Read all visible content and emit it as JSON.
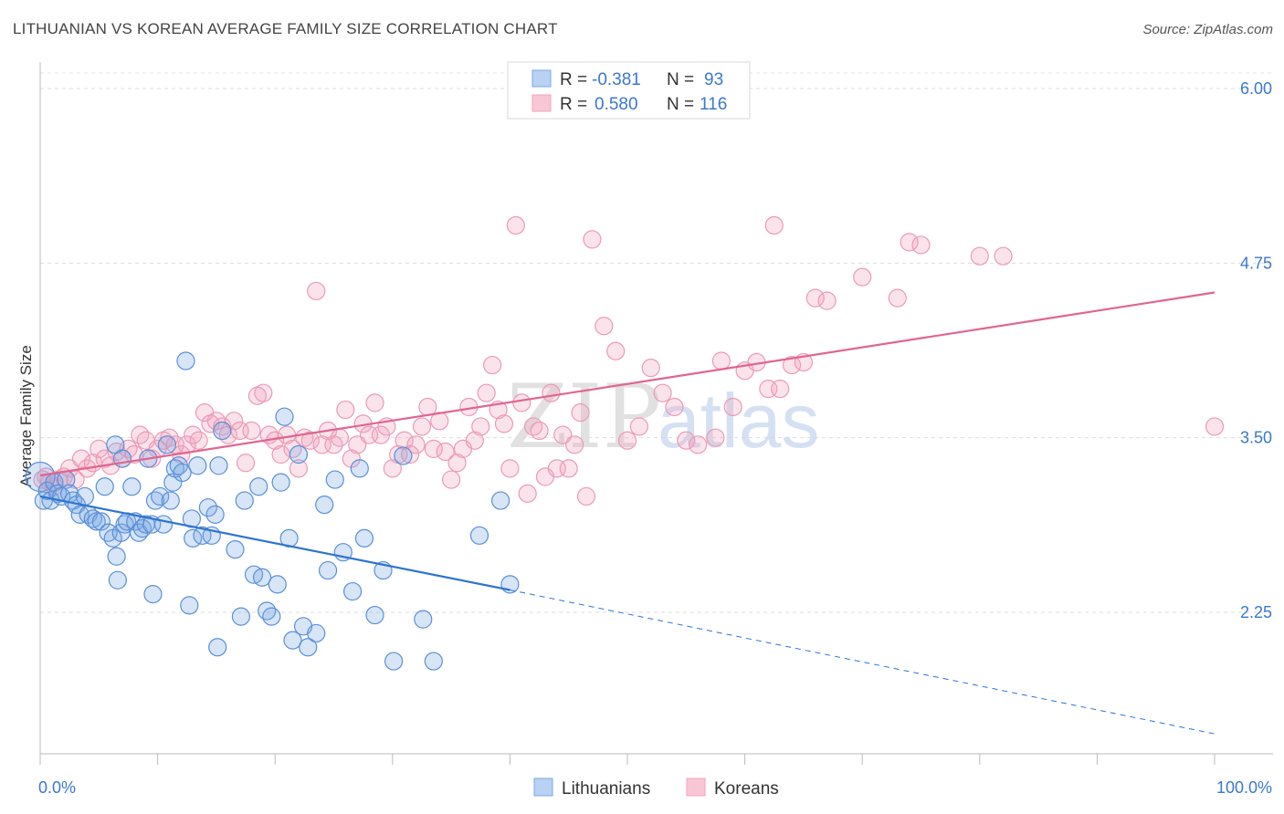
{
  "header": {
    "title": "LITHUANIAN VS KOREAN AVERAGE FAMILY SIZE CORRELATION CHART",
    "source": "Source: ZipAtlas.com"
  },
  "watermark": {
    "zip": "ZIP",
    "atlas": "atlas"
  },
  "stats": {
    "lithuanians": {
      "r_label": "R =",
      "r": "-0.381",
      "n_label": "N =",
      "n": "93",
      "color": "#7aa9e6"
    },
    "koreans": {
      "r_label": "R =",
      "r": "0.580",
      "n_label": "N =",
      "n": "116",
      "color": "#f3a3bd"
    }
  },
  "legend": {
    "lithuanians": "Lithuanians",
    "koreans": "Koreans"
  },
  "chart_data": {
    "type": "scatter",
    "title": "LITHUANIAN VS KOREAN AVERAGE FAMILY SIZE CORRELATION CHART",
    "xlabel": "",
    "ylabel": "Average Family Size",
    "xlim": [
      0,
      100
    ],
    "ylim": [
      1.0,
      6.2
    ],
    "x_tick_labels": [
      "0.0%",
      "100.0%"
    ],
    "y_ticks": [
      2.25,
      3.5,
      4.75,
      6.0
    ],
    "y_tick_labels": [
      "2.25",
      "3.50",
      "4.75",
      "6.00"
    ],
    "grid": true,
    "legend_position": "bottom-center",
    "series": [
      {
        "name": "Lithuanians",
        "color": "#5b8fd8",
        "trend": {
          "x": [
            0,
            40
          ],
          "y": [
            3.08,
            2.41
          ],
          "dashed_to": [
            100,
            1.38
          ]
        },
        "points": [
          [
            0,
            3.22
          ],
          [
            0.3,
            3.05
          ],
          [
            0.6,
            3.12
          ],
          [
            0.9,
            3.05
          ],
          [
            1.2,
            3.18
          ],
          [
            1.5,
            3.1
          ],
          [
            1.8,
            3.08
          ],
          [
            2.2,
            3.2
          ],
          [
            2.5,
            3.1
          ],
          [
            2.8,
            3.05
          ],
          [
            3.1,
            3.02
          ],
          [
            3.4,
            2.95
          ],
          [
            3.8,
            3.08
          ],
          [
            4.1,
            2.95
          ],
          [
            4.5,
            2.92
          ],
          [
            4.8,
            2.9
          ],
          [
            5.2,
            2.9
          ],
          [
            5.5,
            3.15
          ],
          [
            5.8,
            2.82
          ],
          [
            6.2,
            2.78
          ],
          [
            6.4,
            3.45
          ],
          [
            6.5,
            2.65
          ],
          [
            6.6,
            2.48
          ],
          [
            6.9,
            2.82
          ],
          [
            7.0,
            3.35
          ],
          [
            7.2,
            2.88
          ],
          [
            7.4,
            2.9
          ],
          [
            7.8,
            3.15
          ],
          [
            8.1,
            2.9
          ],
          [
            8.4,
            2.82
          ],
          [
            8.7,
            2.85
          ],
          [
            9.0,
            2.88
          ],
          [
            9.2,
            3.35
          ],
          [
            9.5,
            2.88
          ],
          [
            9.6,
            2.38
          ],
          [
            9.8,
            3.05
          ],
          [
            10.2,
            3.08
          ],
          [
            10.5,
            2.88
          ],
          [
            10.8,
            3.45
          ],
          [
            11.1,
            3.05
          ],
          [
            11.3,
            3.18
          ],
          [
            11.5,
            3.28
          ],
          [
            11.8,
            3.3
          ],
          [
            12.1,
            3.25
          ],
          [
            12.4,
            4.05
          ],
          [
            12.7,
            2.3
          ],
          [
            12.9,
            2.92
          ],
          [
            13.0,
            2.78
          ],
          [
            13.4,
            3.3
          ],
          [
            13.8,
            2.8
          ],
          [
            14.3,
            3.0
          ],
          [
            14.6,
            2.8
          ],
          [
            14.9,
            2.95
          ],
          [
            15.1,
            2.0
          ],
          [
            15.2,
            3.3
          ],
          [
            15.5,
            3.55
          ],
          [
            16.6,
            2.7
          ],
          [
            17.1,
            2.22
          ],
          [
            17.4,
            3.05
          ],
          [
            18.2,
            2.52
          ],
          [
            18.6,
            3.15
          ],
          [
            18.9,
            2.5
          ],
          [
            19.3,
            2.26
          ],
          [
            19.7,
            2.22
          ],
          [
            20.2,
            2.45
          ],
          [
            20.5,
            3.18
          ],
          [
            20.8,
            3.65
          ],
          [
            21.2,
            2.78
          ],
          [
            21.5,
            2.05
          ],
          [
            22.0,
            3.38
          ],
          [
            22.4,
            2.15
          ],
          [
            22.8,
            2.0
          ],
          [
            23.5,
            2.1
          ],
          [
            24.2,
            3.02
          ],
          [
            24.5,
            2.55
          ],
          [
            25.1,
            3.2
          ],
          [
            25.8,
            2.68
          ],
          [
            26.6,
            2.4
          ],
          [
            27.2,
            3.28
          ],
          [
            27.6,
            2.78
          ],
          [
            28.5,
            2.23
          ],
          [
            29.2,
            2.55
          ],
          [
            30.1,
            1.9
          ],
          [
            30.9,
            3.37
          ],
          [
            32.6,
            2.2
          ],
          [
            33.5,
            1.9
          ],
          [
            37.4,
            2.8
          ],
          [
            39.2,
            3.05
          ],
          [
            40.0,
            2.45
          ]
        ]
      },
      {
        "name": "Koreans",
        "color": "#ec82a4",
        "trend": {
          "x": [
            0,
            100
          ],
          "y": [
            3.23,
            4.54
          ]
        },
        "points": [
          [
            0.2,
            3.2
          ],
          [
            0.5,
            3.22
          ],
          [
            0.8,
            3.18
          ],
          [
            1.2,
            3.15
          ],
          [
            1.6,
            3.2
          ],
          [
            2.0,
            3.22
          ],
          [
            2.5,
            3.28
          ],
          [
            3.0,
            3.2
          ],
          [
            3.5,
            3.35
          ],
          [
            4.0,
            3.28
          ],
          [
            4.5,
            3.32
          ],
          [
            5.0,
            3.42
          ],
          [
            5.5,
            3.35
          ],
          [
            6.0,
            3.3
          ],
          [
            6.5,
            3.4
          ],
          [
            7.0,
            3.35
          ],
          [
            7.5,
            3.42
          ],
          [
            8.0,
            3.38
          ],
          [
            8.5,
            3.52
          ],
          [
            9.0,
            3.48
          ],
          [
            9.5,
            3.35
          ],
          [
            10.0,
            3.42
          ],
          [
            10.5,
            3.48
          ],
          [
            11.0,
            3.5
          ],
          [
            11.5,
            3.45
          ],
          [
            12.0,
            3.38
          ],
          [
            12.5,
            3.45
          ],
          [
            13.0,
            3.52
          ],
          [
            13.5,
            3.48
          ],
          [
            14.0,
            3.68
          ],
          [
            14.5,
            3.6
          ],
          [
            15.0,
            3.62
          ],
          [
            15.5,
            3.58
          ],
          [
            16.0,
            3.52
          ],
          [
            16.5,
            3.62
          ],
          [
            17.0,
            3.55
          ],
          [
            17.5,
            3.32
          ],
          [
            18.0,
            3.55
          ],
          [
            18.5,
            3.8
          ],
          [
            19.0,
            3.82
          ],
          [
            19.5,
            3.52
          ],
          [
            20.0,
            3.48
          ],
          [
            20.5,
            3.38
          ],
          [
            21.0,
            3.52
          ],
          [
            21.5,
            3.42
          ],
          [
            22.0,
            3.28
          ],
          [
            22.5,
            3.5
          ],
          [
            23.0,
            3.48
          ],
          [
            23.5,
            4.55
          ],
          [
            24.0,
            3.45
          ],
          [
            24.5,
            3.55
          ],
          [
            25.0,
            3.45
          ],
          [
            25.5,
            3.5
          ],
          [
            26.0,
            3.7
          ],
          [
            26.5,
            3.35
          ],
          [
            27.0,
            3.45
          ],
          [
            27.5,
            3.6
          ],
          [
            28.0,
            3.52
          ],
          [
            28.5,
            3.75
          ],
          [
            29.0,
            3.52
          ],
          [
            29.5,
            3.58
          ],
          [
            30.0,
            3.28
          ],
          [
            30.5,
            3.38
          ],
          [
            31.0,
            3.48
          ],
          [
            31.5,
            3.38
          ],
          [
            32.0,
            3.45
          ],
          [
            32.5,
            3.58
          ],
          [
            33.0,
            3.72
          ],
          [
            33.5,
            3.42
          ],
          [
            34.0,
            3.62
          ],
          [
            34.5,
            3.4
          ],
          [
            35.0,
            3.2
          ],
          [
            35.5,
            3.32
          ],
          [
            36.0,
            3.42
          ],
          [
            36.5,
            3.72
          ],
          [
            37.0,
            3.48
          ],
          [
            37.5,
            3.58
          ],
          [
            38.0,
            3.82
          ],
          [
            38.5,
            4.02
          ],
          [
            39.0,
            3.7
          ],
          [
            39.5,
            3.6
          ],
          [
            40.0,
            3.28
          ],
          [
            40.5,
            5.02
          ],
          [
            41.0,
            3.75
          ],
          [
            41.5,
            3.1
          ],
          [
            42.0,
            3.58
          ],
          [
            42.5,
            3.55
          ],
          [
            43.0,
            3.22
          ],
          [
            43.5,
            3.82
          ],
          [
            44.0,
            3.28
          ],
          [
            44.5,
            3.52
          ],
          [
            45.0,
            3.28
          ],
          [
            45.5,
            3.45
          ],
          [
            46.0,
            3.68
          ],
          [
            46.5,
            3.08
          ],
          [
            47.0,
            4.92
          ],
          [
            48.0,
            4.3
          ],
          [
            49.0,
            4.12
          ],
          [
            50.0,
            3.48
          ],
          [
            51.0,
            3.58
          ],
          [
            52.0,
            4.0
          ],
          [
            53.0,
            3.82
          ],
          [
            54.0,
            3.72
          ],
          [
            55.0,
            3.48
          ],
          [
            56.0,
            3.45
          ],
          [
            57.5,
            3.5
          ],
          [
            58.0,
            4.05
          ],
          [
            59.0,
            3.72
          ],
          [
            60.0,
            3.98
          ],
          [
            61.0,
            4.04
          ],
          [
            62.0,
            3.85
          ],
          [
            62.5,
            5.02
          ],
          [
            63.0,
            3.85
          ],
          [
            64.0,
            4.02
          ],
          [
            65.0,
            4.04
          ],
          [
            66.0,
            4.5
          ],
          [
            67.0,
            4.48
          ],
          [
            70.0,
            4.65
          ],
          [
            73.0,
            4.5
          ],
          [
            74.0,
            4.9
          ],
          [
            75.0,
            4.88
          ],
          [
            80.0,
            4.8
          ],
          [
            82.0,
            4.8
          ],
          [
            100.0,
            3.58
          ]
        ]
      }
    ]
  }
}
